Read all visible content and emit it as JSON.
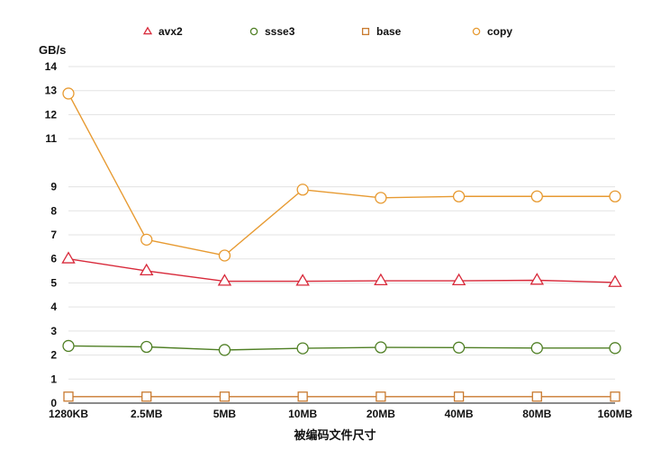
{
  "chart_data": {
    "type": "line",
    "title": "",
    "xlabel": "被编码文件尺寸",
    "ylabel": "GB/s",
    "ylim": [
      0,
      14
    ],
    "yticks": [
      "0",
      "1",
      "2",
      "3",
      "4",
      "5",
      "6",
      "7",
      "8",
      "9",
      "11",
      "12",
      "13",
      "14"
    ],
    "categories": [
      "1280KB",
      "2.5MB",
      "5MB",
      "10MB",
      "20MB",
      "40MB",
      "80MB",
      "160MB"
    ],
    "grid": true,
    "legend_position": "top",
    "series": [
      {
        "name": "avx2",
        "color": "#d8293a",
        "marker": "triangle",
        "values": [
          6.0,
          5.5,
          5.07,
          5.07,
          5.09,
          5.09,
          5.11,
          5.02
        ]
      },
      {
        "name": "ssse3",
        "color": "#4f7f24",
        "marker": "circle",
        "values": [
          2.38,
          2.34,
          2.21,
          2.28,
          2.32,
          2.31,
          2.29,
          2.29
        ]
      },
      {
        "name": "base",
        "color": "#c97a2f",
        "marker": "square",
        "values": [
          0.27,
          0.27,
          0.27,
          0.27,
          0.27,
          0.27,
          0.27,
          0.27
        ]
      },
      {
        "name": "copy",
        "color": "#e79a31",
        "marker": "circle",
        "values": [
          12.88,
          6.8,
          6.14,
          8.88,
          8.54,
          8.6,
          8.6,
          8.6
        ]
      }
    ]
  }
}
